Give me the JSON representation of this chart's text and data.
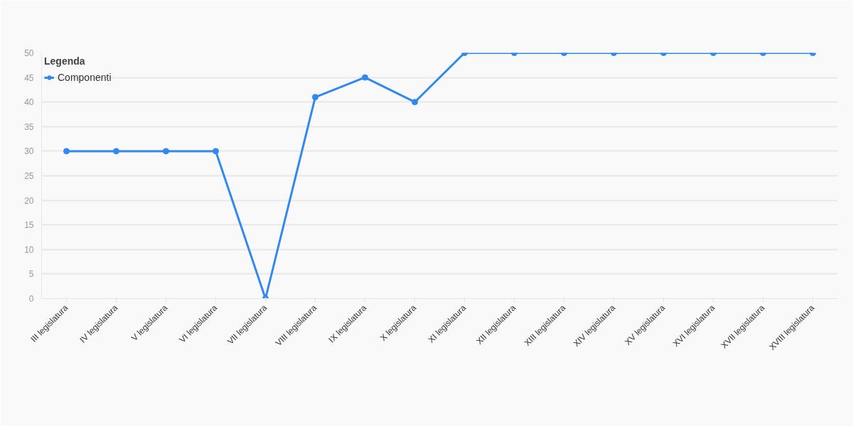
{
  "chart_data": {
    "type": "line",
    "legend_title": "Legenda",
    "categories": [
      "III legislatura",
      "IV legislatura",
      "V legislatura",
      "VI legislatura",
      "VII legislatura",
      "VIII legislatura",
      "IX legislatura",
      "X legislatura",
      "XI legislatura",
      "XII legislatura",
      "XIII legislatura",
      "XIV legislatura",
      "XV legislatura",
      "XVI legislatura",
      "XVII legislatura",
      "XVIII legislatura"
    ],
    "series": [
      {
        "name": "Componenti",
        "color": "#3388ee",
        "values": [
          30,
          30,
          30,
          30,
          0,
          41,
          45,
          40,
          50,
          50,
          50,
          50,
          50,
          50,
          50,
          50
        ]
      }
    ],
    "ylim": [
      0,
      50
    ],
    "yticks": [
      0,
      5,
      10,
      15,
      20,
      25,
      30,
      35,
      40,
      45,
      50
    ],
    "grid": "y",
    "legend": "top left",
    "marker": "circle",
    "line_style": "solid"
  }
}
